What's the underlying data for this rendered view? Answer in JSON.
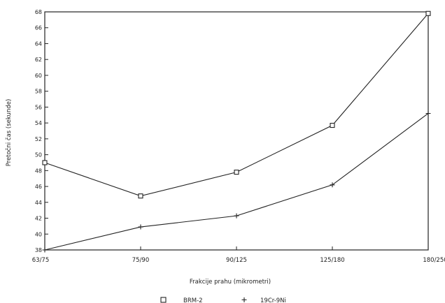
{
  "chart_data": {
    "type": "line",
    "title": "",
    "xlabel": "Frakcije prahu (mikrometri)",
    "ylabel": "Pretočni čas (sekunde)",
    "categories": [
      "63/75",
      "75/90",
      "90/125",
      "125/180",
      "180/250"
    ],
    "ylim": [
      38,
      68
    ],
    "yticks": [
      38,
      40,
      42,
      44,
      46,
      48,
      50,
      52,
      54,
      56,
      58,
      60,
      62,
      64,
      66,
      68
    ],
    "grid": false,
    "legend_position": "bottom",
    "series": [
      {
        "name": "BRM-2",
        "marker": "square",
        "values": [
          49.0,
          44.8,
          47.8,
          53.7,
          67.8
        ]
      },
      {
        "name": "19Cr-9Ni",
        "marker": "plus",
        "values": [
          38.0,
          40.9,
          42.3,
          46.2,
          55.2
        ]
      }
    ]
  }
}
